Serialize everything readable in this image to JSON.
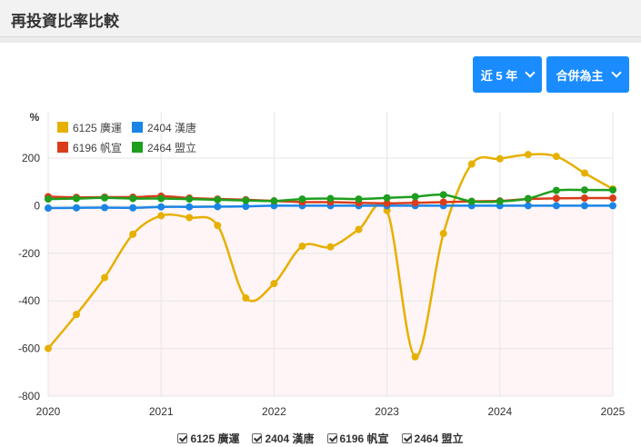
{
  "header": {
    "title": "再投資比率比較"
  },
  "controls": {
    "period_label": "近 5 年",
    "mode_label": "合併為主"
  },
  "chart_data": {
    "type": "line",
    "ylabel": "%",
    "ylim": [
      -800,
      250
    ],
    "yticks": [
      200,
      0,
      -200,
      -400,
      -600,
      -800
    ],
    "xlim": [
      2020,
      2025
    ],
    "xticks": [
      "2020",
      "2021",
      "2022",
      "2023",
      "2024",
      "2025"
    ],
    "grid": true,
    "legend_placement": "top-left",
    "x": [
      2020.0,
      2020.25,
      2020.5,
      2020.75,
      2021.0,
      2021.25,
      2021.5,
      2021.75,
      2022.0,
      2022.25,
      2022.5,
      2022.75,
      2023.0,
      2023.25,
      2023.5,
      2023.75,
      2024.0,
      2024.25,
      2024.5,
      2024.75,
      2025.0
    ],
    "series": [
      {
        "name": "6125 廣運",
        "color": "#e6b000",
        "values": [
          -600,
          -457,
          -302,
          -120,
          -42,
          -50,
          -83,
          -388,
          -327,
          -170,
          -173,
          -100,
          -20,
          -635,
          -117,
          175,
          197,
          215,
          207,
          137,
          70
        ]
      },
      {
        "name": "2404 漢唐",
        "color": "#1a85e6",
        "values": [
          -10,
          -9,
          -8,
          -9,
          -5,
          -5,
          -4,
          -3,
          0,
          0,
          0,
          0,
          0,
          0,
          0,
          0,
          0,
          0,
          0,
          0,
          0
        ]
      },
      {
        "name": "6196 帆宣",
        "color": "#d93d1a",
        "values": [
          38,
          35,
          36,
          36,
          40,
          32,
          28,
          25,
          20,
          15,
          15,
          12,
          10,
          12,
          15,
          18,
          20,
          28,
          31,
          32,
          32
        ]
      },
      {
        "name": "2464 盟立",
        "color": "#1e9e1e",
        "values": [
          28,
          30,
          33,
          30,
          30,
          28,
          25,
          22,
          20,
          28,
          30,
          28,
          33,
          38,
          46,
          18,
          18,
          30,
          64,
          66,
          66
        ]
      }
    ]
  }
}
